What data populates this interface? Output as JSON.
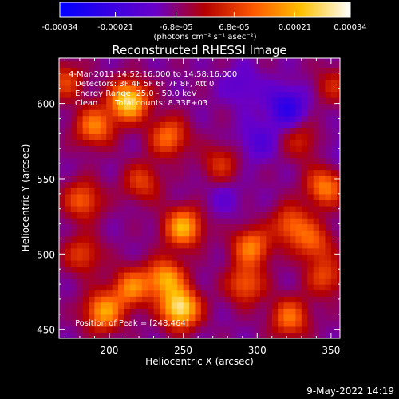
{
  "chart_data": {
    "type": "heatmap",
    "title": "Reconstructed RHESSI Image",
    "xlabel": "Heliocentric X (arcsec)",
    "ylabel": "Heliocentric Y (arcsec)",
    "xlim": [
      166,
      356
    ],
    "ylim": [
      444,
      630
    ],
    "xticks": [
      200,
      250,
      300,
      350
    ],
    "yticks": [
      450,
      500,
      550,
      600
    ],
    "colorbar": {
      "range": [
        -0.00034,
        0.00034
      ],
      "ticks": [
        -0.00034,
        -0.00021,
        -6.8e-05,
        6.8e-05,
        0.00021,
        0.00034
      ],
      "tick_labels": [
        "-0.00034",
        "-0.00021",
        "-6.8e-05",
        "6.8e-05",
        "0.00021",
        "0.00034"
      ],
      "units_label": "(photons cm⁻² s⁻¹ asec⁻²)",
      "colors": [
        "#0000ff",
        "#6a00c8",
        "#b40000",
        "#ff5a00",
        "#ffc000",
        "#ffffff"
      ]
    },
    "annotations": {
      "time_range": "4-Mar-2011 14:52:16.000 to 14:58:16.000",
      "detectors": "Detectors: 3F 4F 5F 6F 7F 8F, Att 0",
      "energy": "Energy Range: 25.0 - 50.0 keV",
      "method": "Clean",
      "counts": "Total counts: 8.33E+03",
      "peak": "Position of Peak = [248,464]"
    },
    "peak": [
      248,
      464
    ],
    "sources": [
      {
        "x": 213,
        "y": 602,
        "amp": 0.00033
      },
      {
        "x": 190,
        "y": 585,
        "amp": 0.0002
      },
      {
        "x": 240,
        "y": 578,
        "amp": 0.00018
      },
      {
        "x": 222,
        "y": 548,
        "amp": 0.00012
      },
      {
        "x": 250,
        "y": 518,
        "amp": 0.00026
      },
      {
        "x": 296,
        "y": 505,
        "amp": 0.0002
      },
      {
        "x": 323,
        "y": 520,
        "amp": 0.00016
      },
      {
        "x": 346,
        "y": 545,
        "amp": 0.0002
      },
      {
        "x": 338,
        "y": 508,
        "amp": 0.00014
      },
      {
        "x": 182,
        "y": 536,
        "amp": 0.00016
      },
      {
        "x": 215,
        "y": 478,
        "amp": 0.0002
      },
      {
        "x": 248,
        "y": 464,
        "amp": 0.00034
      },
      {
        "x": 238,
        "y": 484,
        "amp": 0.00024
      },
      {
        "x": 196,
        "y": 462,
        "amp": 0.00024
      },
      {
        "x": 292,
        "y": 480,
        "amp": 0.00016
      },
      {
        "x": 322,
        "y": 458,
        "amp": 0.00018
      },
      {
        "x": 346,
        "y": 485,
        "amp": 0.00013
      },
      {
        "x": 182,
        "y": 500,
        "amp": 0.00012
      },
      {
        "x": 275,
        "y": 560,
        "amp": 0.0001
      },
      {
        "x": 330,
        "y": 575,
        "amp": 8e-05
      },
      {
        "x": 352,
        "y": 612,
        "amp": 8e-05
      },
      {
        "x": 170,
        "y": 615,
        "amp": 0.00012
      },
      {
        "x": 320,
        "y": 598,
        "amp": -0.0002
      },
      {
        "x": 300,
        "y": 575,
        "amp": -0.00012
      },
      {
        "x": 290,
        "y": 612,
        "amp": -0.0001
      },
      {
        "x": 278,
        "y": 538,
        "amp": -8e-05
      },
      {
        "x": 355,
        "y": 568,
        "amp": -8e-05
      }
    ]
  },
  "footer": {
    "timestamp": "9-May-2022 14:19"
  }
}
